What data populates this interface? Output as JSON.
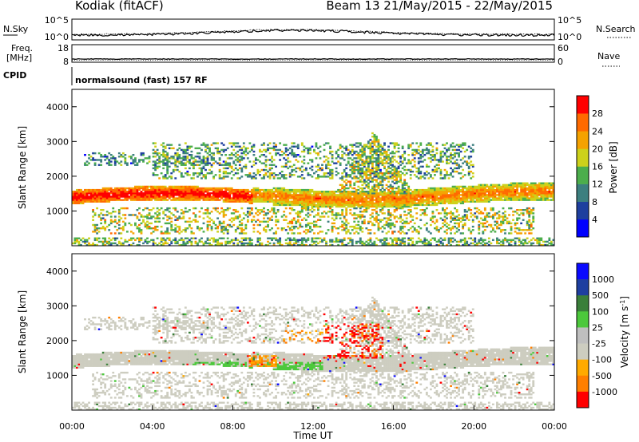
{
  "header": {
    "station": "Kodiak (fitACF)",
    "beam_info": "Beam 13 21/May/2015 - 22/May/2015"
  },
  "noise_panel": {
    "left_label": "N.Sky",
    "right_label": "N.Search",
    "left_ticks": [
      "10^5",
      "10^0"
    ],
    "right_ticks": [
      "10^5",
      "10^0"
    ]
  },
  "freq_panel": {
    "left_label_1": "Freq.",
    "left_label_2": "[MHz]",
    "right_label": "Nave",
    "left_ticks": [
      "18",
      "8"
    ],
    "right_ticks": [
      "60",
      "0"
    ]
  },
  "cpid": {
    "label": "CPID",
    "text": "normalsound (fast) 157 RF"
  },
  "colors": {
    "power_scale": [
      "#0000ff",
      "#1e3f9e",
      "#3c7f7f",
      "#4cae4c",
      "#cdd11a",
      "#f5a200",
      "#ff6a00",
      "#ff0000"
    ],
    "velocity_scale": [
      "#ff0000",
      "#ff7f00",
      "#ffaa00",
      "#cdcdc0",
      "#bfbfbf",
      "#4cc83c",
      "#3a7f3a",
      "#1e3fa0",
      "#0a0aff"
    ]
  },
  "chart_data": [
    {
      "type": "heatmap",
      "title": "",
      "ylabel": "Slant Range [km]",
      "ylim": [
        0,
        4500
      ],
      "y_ticks": [
        "1000",
        "2000",
        "3000",
        "4000"
      ],
      "colorbar_label": "Power [dB]",
      "colorbar_ticks": [
        "4",
        "8",
        "12",
        "16",
        "20",
        "24",
        "28"
      ],
      "colorbar_range": [
        0,
        32
      ],
      "features": [
        {
          "t_start": 0.0,
          "t_end": 24.0,
          "range_center": 1450,
          "range_width": 350,
          "value": 22
        },
        {
          "t_start": 0.0,
          "t_end": 9.0,
          "range_center": 1400,
          "range_width": 200,
          "value": 26
        },
        {
          "t_start": 14.0,
          "t_end": 16.5,
          "range_center": 3000,
          "range_width": 600,
          "value": 14
        },
        {
          "t_start": 5.5,
          "t_end": 12.0,
          "range_center": 600,
          "range_width": 200,
          "value": 20
        }
      ]
    },
    {
      "type": "heatmap",
      "title": "",
      "xlabel": "Time UT",
      "ylabel": "Slant Range [km]",
      "ylim": [
        0,
        4500
      ],
      "y_ticks": [
        "1000",
        "2000",
        "3000",
        "4000"
      ],
      "x_ticks": [
        "00:00",
        "04:00",
        "08:00",
        "12:00",
        "16:00",
        "20:00",
        "00:00"
      ],
      "colorbar_label": "Velocity [m s^-1]",
      "colorbar_ticks": [
        "1000",
        "500",
        "100",
        "25",
        "-25",
        "-100",
        "-500",
        "-1000"
      ],
      "features": [
        {
          "t_start": 0.0,
          "t_end": 24.0,
          "range_center": 1450,
          "range_width": 350,
          "value": 0
        },
        {
          "t_start": 7.0,
          "t_end": 12.5,
          "range_center": 1250,
          "range_width": 150,
          "value": 120
        },
        {
          "t_start": 9.0,
          "t_end": 10.5,
          "range_center": 1400,
          "range_width": 200,
          "value": -150
        },
        {
          "t_start": 13.5,
          "t_end": 15.5,
          "range_center": 2000,
          "range_width": 500,
          "value": -600
        }
      ]
    }
  ]
}
